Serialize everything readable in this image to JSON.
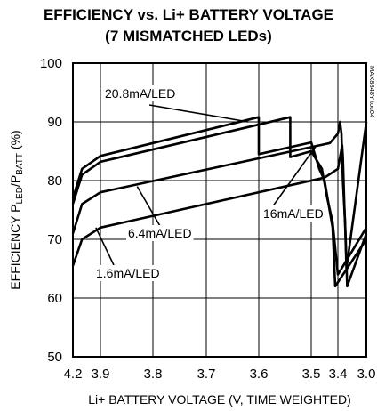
{
  "chart_data": {
    "type": "line",
    "title": [
      "EFFICIENCY vs. Li+ BATTERY VOLTAGE",
      "(7 MISMATCHED LEDs)"
    ],
    "xlabel": "Li+ BATTERY VOLTAGE (V, TIME WEIGHTED)",
    "ylabel": {
      "prefix": "EFFICIENCY P",
      "sub1": "LED",
      "mid": "/P",
      "sub2": "BATT",
      "suffix": " (%)"
    },
    "watermark": "MAX8848Y toc04",
    "ylim": [
      50,
      100
    ],
    "yticks": [
      "50",
      "60",
      "70",
      "80",
      "90",
      "100"
    ],
    "xticks": [
      {
        "label": "4.2",
        "v": 4.2
      },
      {
        "label": "3.9",
        "v": 3.9
      },
      {
        "label": "3.8",
        "v": 3.8
      },
      {
        "label": "3.7",
        "v": 3.7
      },
      {
        "label": "3.6",
        "v": 3.6
      },
      {
        "label": "3.5",
        "v": 3.5
      },
      {
        "label": "3.4",
        "v": 3.4
      },
      {
        "label": "3.0",
        "v": 3.0
      }
    ],
    "grid": true,
    "series": [
      {
        "name": "20.8mA/LED",
        "points": [
          [
            4.2,
            77
          ],
          [
            4.1,
            82
          ],
          [
            3.9,
            84.2
          ],
          [
            3.6,
            90.8
          ],
          [
            3.6,
            84.5
          ],
          [
            3.5,
            86.5
          ],
          [
            3.47,
            82
          ],
          [
            3.45,
            80
          ],
          [
            3.42,
            72
          ],
          [
            3.41,
            62
          ],
          [
            3.0,
            70
          ]
        ]
      },
      {
        "name": "16mA/LED",
        "points": [
          [
            4.2,
            76
          ],
          [
            4.1,
            81
          ],
          [
            3.9,
            83.2
          ],
          [
            3.54,
            90.8
          ],
          [
            3.54,
            84
          ],
          [
            3.5,
            85
          ],
          [
            3.46,
            82
          ],
          [
            3.44,
            77
          ],
          [
            3.42,
            73
          ],
          [
            3.4,
            64
          ],
          [
            3.0,
            72
          ]
        ]
      },
      {
        "name": "6.4mA/LED",
        "points": [
          [
            4.2,
            71
          ],
          [
            4.1,
            76
          ],
          [
            3.9,
            78
          ],
          [
            3.45,
            86.2
          ],
          [
            3.43,
            86.4
          ],
          [
            3.4,
            88
          ],
          [
            3.37,
            90
          ],
          [
            3.35,
            88
          ],
          [
            3.33,
            80
          ],
          [
            3.3,
            73
          ],
          [
            3.28,
            65
          ],
          [
            3.0,
            90
          ]
        ]
      },
      {
        "name": "1.6mA/LED",
        "points": [
          [
            4.2,
            65.5
          ],
          [
            4.1,
            70
          ],
          [
            3.9,
            72
          ],
          [
            3.45,
            80.5
          ],
          [
            3.4,
            82
          ],
          [
            3.37,
            84
          ],
          [
            3.34,
            86
          ],
          [
            3.33,
            84
          ],
          [
            3.31,
            76
          ],
          [
            3.29,
            70
          ],
          [
            3.27,
            62
          ],
          [
            3.0,
            71
          ]
        ]
      }
    ],
    "annotations": [
      {
        "text": "20.8mA/LED",
        "target": [
          3.62,
          90
        ]
      },
      {
        "text": "16mA/LED",
        "target": [
          3.48,
          86
        ]
      },
      {
        "text": "6.4mA/LED",
        "target": [
          3.83,
          79
        ]
      },
      {
        "text": "1.6mA/LED",
        "target": [
          3.95,
          72
        ]
      }
    ]
  }
}
